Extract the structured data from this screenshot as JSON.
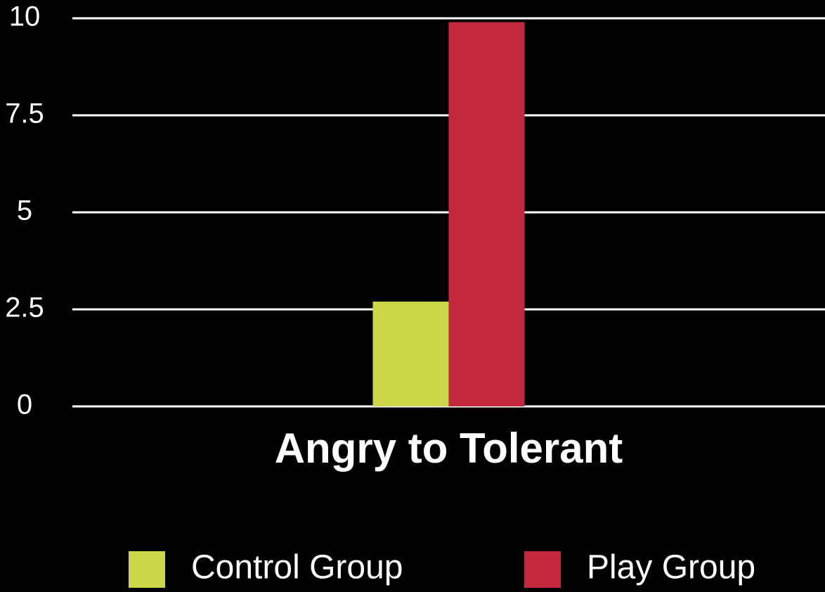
{
  "chart_data": {
    "type": "bar",
    "categories": [
      "Angry to Tolerant"
    ],
    "series": [
      {
        "name": "Control Group",
        "color": "#cbd648",
        "values": [
          2.7
        ]
      },
      {
        "name": "Play Group",
        "color": "#c4283c",
        "values": [
          9.9
        ]
      }
    ],
    "ylim": [
      0,
      10
    ],
    "yticks": [
      0,
      2.5,
      5,
      7.5,
      10
    ],
    "grid": true,
    "legend": "bottom"
  }
}
